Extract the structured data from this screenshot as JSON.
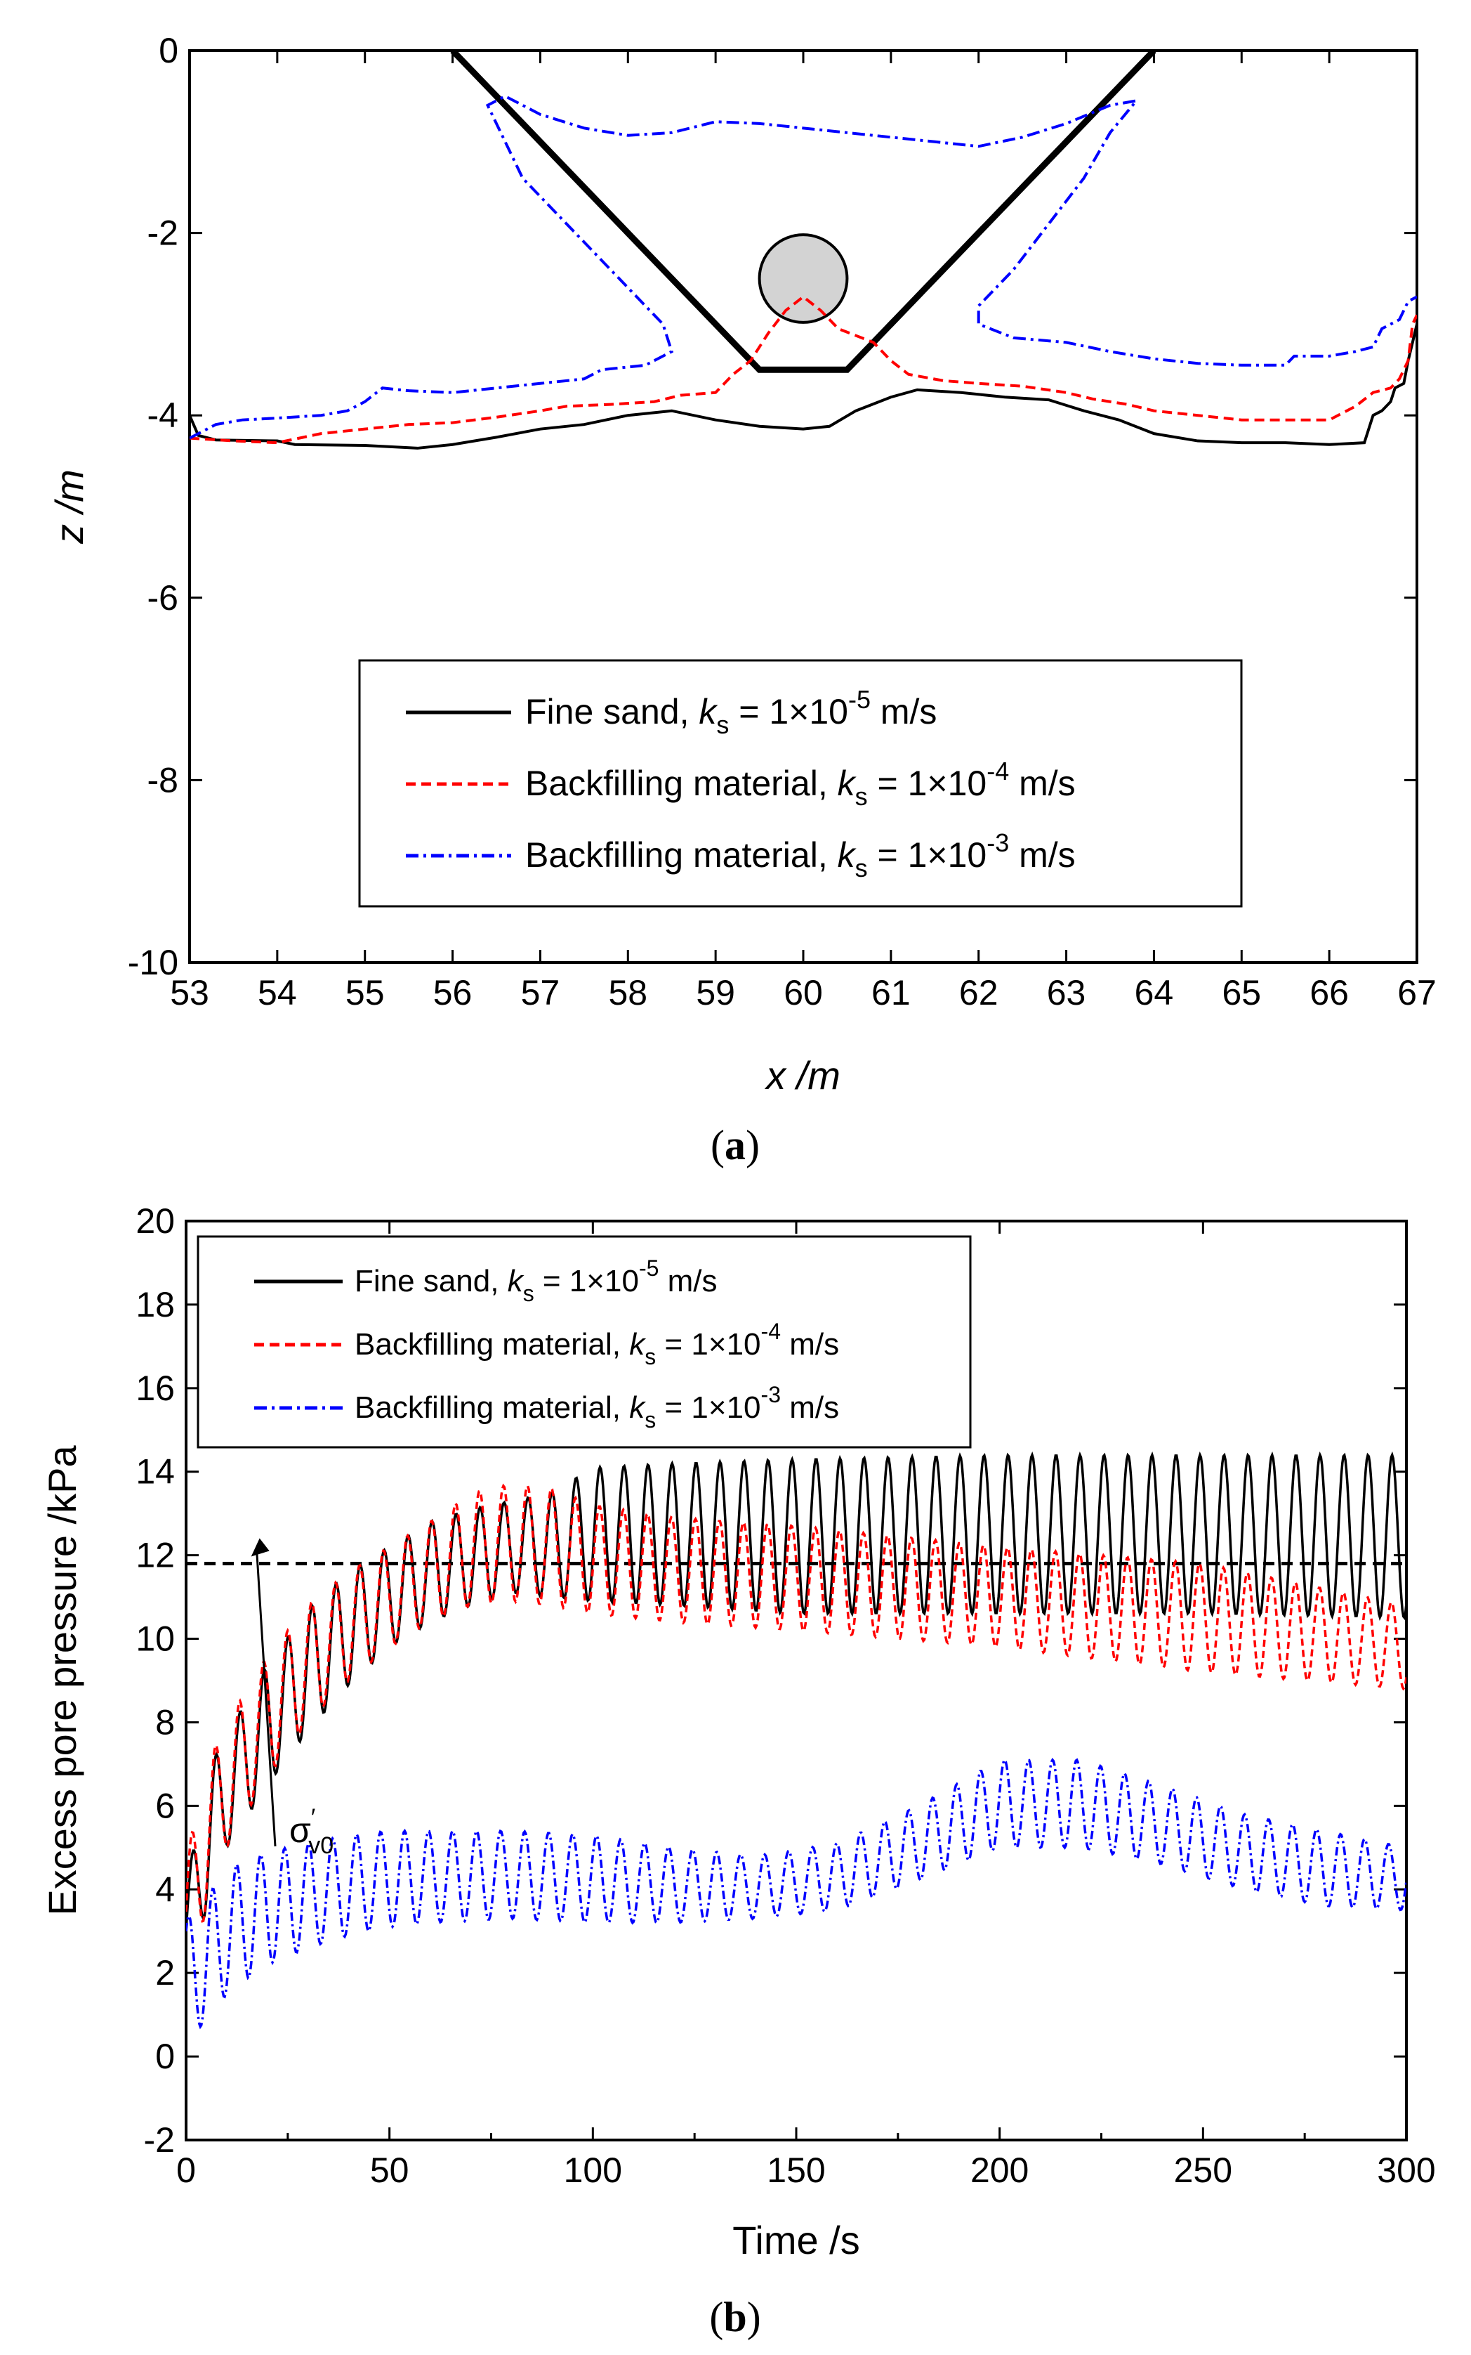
{
  "chart_data": [
    {
      "type": "line",
      "panel_label": "a",
      "xlabel": "x /m",
      "ylabel": "z /m",
      "xlim": [
        53,
        67
      ],
      "ylim": [
        -10,
        0
      ],
      "xticks": [
        53,
        54,
        55,
        56,
        57,
        58,
        59,
        60,
        61,
        62,
        63,
        64,
        65,
        66,
        67
      ],
      "yticks": [
        0,
        -2,
        -4,
        -6,
        -8,
        -10
      ],
      "trench": [
        [
          56,
          0
        ],
        [
          59.5,
          -3.5
        ],
        [
          60.5,
          -3.5
        ],
        [
          64,
          0
        ]
      ],
      "pipe": {
        "cx": 60,
        "cy": -2.5,
        "r": 0.5,
        "fill": "#d3d3d3"
      },
      "series": [
        {
          "name": "fine-sand",
          "legend_prefix": "Fine sand, ",
          "k_symbol": "k",
          "k_sub": "s",
          "k_value": " = 1×10",
          "k_exp": "-5",
          "k_unit": " m/s",
          "color": "#000000",
          "dash": "solid",
          "points": [
            [
              53.0,
              -4.0
            ],
            [
              53.1,
              -4.22
            ],
            [
              53.3,
              -4.27
            ],
            [
              54.0,
              -4.28
            ],
            [
              54.2,
              -4.32
            ],
            [
              55.0,
              -4.33
            ],
            [
              55.6,
              -4.36
            ],
            [
              56.0,
              -4.32
            ],
            [
              56.5,
              -4.24
            ],
            [
              57.0,
              -4.15
            ],
            [
              57.5,
              -4.1
            ],
            [
              58.0,
              -4.0
            ],
            [
              58.5,
              -3.95
            ],
            [
              59.0,
              -4.05
            ],
            [
              59.5,
              -4.12
            ],
            [
              60.0,
              -4.15
            ],
            [
              60.3,
              -4.12
            ],
            [
              60.6,
              -3.95
            ],
            [
              61.0,
              -3.8
            ],
            [
              61.3,
              -3.72
            ],
            [
              61.8,
              -3.75
            ],
            [
              62.3,
              -3.8
            ],
            [
              62.8,
              -3.83
            ],
            [
              63.2,
              -3.95
            ],
            [
              63.6,
              -4.05
            ],
            [
              64.0,
              -4.2
            ],
            [
              64.5,
              -4.28
            ],
            [
              65.0,
              -4.3
            ],
            [
              65.5,
              -4.3
            ],
            [
              66.0,
              -4.32
            ],
            [
              66.4,
              -4.3
            ],
            [
              66.45,
              -4.15
            ],
            [
              66.5,
              -4.0
            ],
            [
              66.6,
              -3.95
            ],
            [
              66.7,
              -3.85
            ],
            [
              66.75,
              -3.7
            ],
            [
              66.85,
              -3.65
            ],
            [
              66.9,
              -3.4
            ],
            [
              66.95,
              -3.2
            ],
            [
              67.0,
              -3.0
            ]
          ]
        },
        {
          "name": "backfilling-1e-4",
          "legend_prefix": "Backfilling material, ",
          "k_symbol": "k",
          "k_sub": "s",
          "k_value": " = 1×10",
          "k_exp": "-4",
          "k_unit": " m/s",
          "color": "#ff0000",
          "dash": "dash",
          "points": [
            [
              53.0,
              -4.25
            ],
            [
              53.5,
              -4.28
            ],
            [
              54.0,
              -4.3
            ],
            [
              54.5,
              -4.2
            ],
            [
              55.0,
              -4.15
            ],
            [
              55.5,
              -4.1
            ],
            [
              56.0,
              -4.08
            ],
            [
              56.5,
              -4.02
            ],
            [
              57.0,
              -3.95
            ],
            [
              57.3,
              -3.9
            ],
            [
              57.8,
              -3.88
            ],
            [
              58.3,
              -3.85
            ],
            [
              58.6,
              -3.78
            ],
            [
              59.0,
              -3.75
            ],
            [
              59.2,
              -3.55
            ],
            [
              59.4,
              -3.4
            ],
            [
              59.6,
              -3.1
            ],
            [
              59.8,
              -2.85
            ],
            [
              60.0,
              -2.7
            ],
            [
              60.2,
              -2.85
            ],
            [
              60.4,
              -3.05
            ],
            [
              60.8,
              -3.2
            ],
            [
              61.0,
              -3.4
            ],
            [
              61.2,
              -3.55
            ],
            [
              61.6,
              -3.62
            ],
            [
              62.0,
              -3.65
            ],
            [
              62.5,
              -3.68
            ],
            [
              63.0,
              -3.75
            ],
            [
              63.3,
              -3.82
            ],
            [
              63.7,
              -3.88
            ],
            [
              64.0,
              -3.95
            ],
            [
              64.5,
              -4.0
            ],
            [
              65.0,
              -4.05
            ],
            [
              65.5,
              -4.05
            ],
            [
              66.0,
              -4.05
            ],
            [
              66.3,
              -3.9
            ],
            [
              66.5,
              -3.75
            ],
            [
              66.7,
              -3.7
            ],
            [
              66.8,
              -3.6
            ],
            [
              66.9,
              -3.4
            ],
            [
              66.95,
              -3.0
            ],
            [
              67.0,
              -2.9
            ]
          ]
        },
        {
          "name": "backfilling-1e-3",
          "legend_prefix": "Backfilling material, ",
          "k_symbol": "k",
          "k_sub": "s",
          "k_value": " = 1×10",
          "k_exp": "-3",
          "k_unit": " m/s",
          "color": "#0000ff",
          "dash": "dashdot",
          "points": [
            [
              53.0,
              -4.25
            ],
            [
              53.3,
              -4.1
            ],
            [
              53.6,
              -4.05
            ],
            [
              54.0,
              -4.03
            ],
            [
              54.5,
              -4.0
            ],
            [
              54.8,
              -3.95
            ],
            [
              55.0,
              -3.85
            ],
            [
              55.2,
              -3.7
            ],
            [
              55.5,
              -3.73
            ],
            [
              56.0,
              -3.75
            ],
            [
              56.5,
              -3.7
            ],
            [
              57.0,
              -3.65
            ],
            [
              57.5,
              -3.6
            ],
            [
              57.7,
              -3.5
            ],
            [
              58.2,
              -3.45
            ],
            [
              58.5,
              -3.3
            ],
            [
              58.4,
              -3.0
            ],
            [
              58.0,
              -2.6
            ],
            [
              57.6,
              -2.2
            ],
            [
              57.2,
              -1.8
            ],
            [
              56.8,
              -1.4
            ],
            [
              56.6,
              -1.0
            ],
            [
              56.4,
              -0.6
            ],
            [
              56.6,
              -0.5
            ],
            [
              57.0,
              -0.7
            ],
            [
              57.5,
              -0.85
            ],
            [
              58.0,
              -0.93
            ],
            [
              58.5,
              -0.9
            ],
            [
              59.0,
              -0.78
            ],
            [
              59.5,
              -0.8
            ],
            [
              60.0,
              -0.85
            ],
            [
              60.5,
              -0.9
            ],
            [
              61.0,
              -0.95
            ],
            [
              61.5,
              -1.0
            ],
            [
              62.0,
              -1.05
            ],
            [
              62.5,
              -0.95
            ],
            [
              63.0,
              -0.8
            ],
            [
              63.5,
              -0.6
            ],
            [
              63.8,
              -0.55
            ],
            [
              63.5,
              -0.9
            ],
            [
              63.2,
              -1.4
            ],
            [
              62.8,
              -1.9
            ],
            [
              62.4,
              -2.4
            ],
            [
              62.0,
              -2.8
            ],
            [
              62.0,
              -3.0
            ],
            [
              62.4,
              -3.15
            ],
            [
              63.0,
              -3.2
            ],
            [
              63.5,
              -3.3
            ],
            [
              64.0,
              -3.38
            ],
            [
              64.5,
              -3.43
            ],
            [
              65.0,
              -3.45
            ],
            [
              65.5,
              -3.45
            ],
            [
              65.6,
              -3.35
            ],
            [
              66.0,
              -3.35
            ],
            [
              66.3,
              -3.3
            ],
            [
              66.5,
              -3.25
            ],
            [
              66.6,
              -3.05
            ],
            [
              66.8,
              -2.95
            ],
            [
              66.9,
              -2.75
            ],
            [
              67.0,
              -2.7
            ]
          ]
        }
      ]
    },
    {
      "type": "line",
      "panel_label": "b",
      "xlabel": "Time /s",
      "ylabel": "Excess pore pressure /kPa",
      "xlim": [
        0,
        300
      ],
      "ylim": [
        -2,
        20
      ],
      "xticks": [
        0,
        50,
        100,
        150,
        200,
        250,
        300
      ],
      "yticks": [
        -2,
        0,
        2,
        4,
        6,
        8,
        10,
        12,
        14,
        16,
        18,
        20
      ],
      "wave_period_s": 5.9,
      "sigma_v0": {
        "value": 11.8,
        "label": "σ",
        "prime": "′",
        "sub": "v0"
      },
      "series": [
        {
          "name": "fine-sand",
          "legend_prefix": "Fine sand, ",
          "k_symbol": "k",
          "k_sub": "s",
          "k_value": " = 1×10",
          "k_exp": "-5",
          "k_unit": " m/s",
          "color": "#000000",
          "dash": "solid",
          "envelope": {
            "t": [
              0,
              5,
              10,
              20,
              30,
              40,
              50,
              60,
              70,
              80,
              90,
              100,
              120,
              150,
              200,
              250,
              300
            ],
            "upper": [
              4.0,
              6.8,
              7.7,
              9.4,
              10.7,
              11.6,
              12.2,
              12.8,
              13.1,
              13.3,
              13.5,
              14.1,
              14.2,
              14.3,
              14.4,
              14.4,
              14.4
            ],
            "lower": [
              2.0,
              3.5,
              5.0,
              6.5,
              7.8,
              8.9,
              9.8,
              10.4,
              10.8,
              11.1,
              11.0,
              10.9,
              10.8,
              10.6,
              10.6,
              10.6,
              10.5
            ]
          }
        },
        {
          "name": "backfilling-1e-4",
          "legend_prefix": "Backfilling material, ",
          "k_symbol": "k",
          "k_sub": "s",
          "k_value": " = 1×10",
          "k_exp": "-4",
          "k_unit": " m/s",
          "color": "#ff0000",
          "dash": "dash",
          "envelope": {
            "t": [
              0,
              5,
              10,
              20,
              30,
              40,
              50,
              60,
              70,
              80,
              90,
              100,
              120,
              150,
              200,
              250,
              300
            ],
            "upper": [
              4.7,
              7.0,
              8.0,
              9.6,
              10.8,
              11.6,
              12.2,
              12.8,
              13.5,
              13.7,
              13.6,
              13.2,
              12.9,
              12.7,
              12.2,
              11.8,
              10.8
            ],
            "lower": [
              1.8,
              3.5,
              5.0,
              6.7,
              8.0,
              9.0,
              9.8,
              10.4,
              10.8,
              10.9,
              10.8,
              10.6,
              10.4,
              10.2,
              9.8,
              9.2,
              8.8
            ]
          }
        },
        {
          "name": "backfilling-1e-3",
          "legend_prefix": "Backfilling material, ",
          "k_symbol": "k",
          "k_sub": "s",
          "k_value": " = 1×10",
          "k_exp": "-3",
          "k_unit": " m/s",
          "color": "#0000ff",
          "dash": "dashdot",
          "envelope": {
            "t": [
              0,
              5,
              10,
              20,
              30,
              40,
              50,
              60,
              80,
              100,
              120,
              140,
              160,
              180,
              200,
              220,
              240,
              260,
              280,
              300
            ],
            "upper": [
              3.3,
              3.8,
              4.5,
              4.9,
              5.1,
              5.3,
              5.4,
              5.4,
              5.4,
              5.3,
              5.0,
              4.8,
              5.1,
              6.0,
              7.1,
              7.1,
              6.5,
              5.8,
              5.4,
              5.0
            ],
            "lower": [
              0.5,
              0.8,
              1.5,
              2.2,
              2.6,
              2.9,
              3.1,
              3.2,
              3.3,
              3.2,
              3.2,
              3.3,
              3.5,
              4.2,
              5.0,
              5.0,
              4.6,
              4.0,
              3.6,
              3.5
            ]
          }
        }
      ]
    }
  ]
}
